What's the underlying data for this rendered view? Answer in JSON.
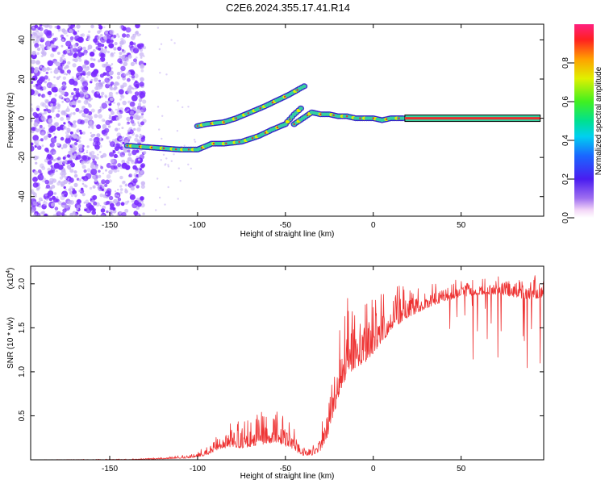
{
  "title": "C2E6.2024.355.17.41.R14",
  "colors": {
    "trace": "#ee3333",
    "dot": "#7b2cff",
    "haze": "#c9b5f5",
    "band": "#35d0a0",
    "core": "#e83030"
  },
  "chart_data": [
    {
      "type": "heatmap",
      "xlabel": "Height of straight line (km)",
      "ylabel": "Frequency (Hz)",
      "xlim": [
        -195,
        97
      ],
      "ylim": [
        -50,
        48
      ],
      "xticks": [
        -150,
        -100,
        -50,
        0,
        50
      ],
      "yticks": [
        -40,
        -20,
        0,
        20,
        40
      ],
      "xtick_labels": [
        "-150",
        "-100",
        "-50",
        "0",
        "50"
      ],
      "ytick_labels": [
        "-40",
        "-20",
        "0",
        "20",
        "40"
      ],
      "noise_region_x": [
        -195,
        -130
      ],
      "colorbar": {
        "label": "Normalized spectral amplitude",
        "range": [
          0,
          1
        ],
        "ticks": [
          0.0,
          0.2,
          0.4,
          0.6,
          0.8
        ],
        "tick_labels": [
          "0.0",
          "0.2",
          "0.4",
          "0.6",
          "0.8"
        ]
      },
      "bands": [
        {
          "points": [
            [
              -140,
              -14
            ],
            [
              -125,
              -15
            ],
            [
              -110,
              -16
            ],
            [
              -100,
              -16
            ],
            [
              -92,
              -13
            ],
            [
              -85,
              -13
            ],
            [
              -75,
              -12
            ],
            [
              -65,
              -9
            ],
            [
              -58,
              -6
            ],
            [
              -50,
              -3
            ],
            [
              -45,
              2
            ],
            [
              -40,
              6
            ]
          ],
          "amplitude": 0.55
        },
        {
          "points": [
            [
              -100,
              -4
            ],
            [
              -95,
              -3
            ],
            [
              -85,
              -2
            ],
            [
              -78,
              0
            ],
            [
              -70,
              3
            ],
            [
              -62,
              6
            ],
            [
              -55,
              9
            ],
            [
              -48,
              12
            ],
            [
              -42,
              15
            ],
            [
              -38,
              17
            ]
          ],
          "amplitude": 0.5
        },
        {
          "points": [
            [
              -45,
              -3
            ],
            [
              -40,
              0
            ],
            [
              -35,
              3
            ],
            [
              -30,
              2
            ],
            [
              -25,
              2
            ],
            [
              -20,
              1
            ],
            [
              -15,
              1
            ],
            [
              -10,
              0
            ],
            [
              -5,
              0
            ],
            [
              0,
              0
            ],
            [
              5,
              -1
            ],
            [
              10,
              0
            ],
            [
              18,
              0
            ]
          ],
          "amplitude": 0.7
        },
        {
          "points": [
            [
              18,
              0
            ],
            [
              95,
              0
            ]
          ],
          "amplitude": 1.0
        }
      ]
    },
    {
      "type": "line",
      "xlabel": "Height of straight line (km)",
      "ylabel": "SNR (10 * v/v)",
      "scale_label_base": "(x10",
      "scale_label_exp": "4",
      "scale_label_end": ")",
      "xlim": [
        -195,
        97
      ],
      "ylim": [
        0,
        2.2
      ],
      "xticks": [
        -150,
        -100,
        -50,
        0,
        50
      ],
      "yticks": [
        0.5,
        1.0,
        1.5,
        2.0
      ],
      "xtick_labels": [
        "-150",
        "-100",
        "-50",
        "0",
        "50"
      ],
      "ytick_labels": [
        "0.5",
        "1.0",
        "1.5",
        "2.0"
      ],
      "envelope": {
        "x": [
          -195,
          -140,
          -120,
          -105,
          -95,
          -88,
          -80,
          -75,
          -65,
          -55,
          -48,
          -45,
          -40,
          -35,
          -30,
          -25,
          -20,
          -15,
          -10,
          -5,
          0,
          5,
          10,
          15,
          20,
          30,
          40,
          50,
          60,
          70,
          80,
          90,
          97
        ],
        "base": [
          0.0,
          0.0,
          0.01,
          0.02,
          0.05,
          0.12,
          0.15,
          0.13,
          0.17,
          0.2,
          0.13,
          0.1,
          0.05,
          0.05,
          0.1,
          0.3,
          0.7,
          0.95,
          1.05,
          1.1,
          1.2,
          1.35,
          1.45,
          1.55,
          1.62,
          1.72,
          1.8,
          1.85,
          1.88,
          1.88,
          1.85,
          1.82,
          1.85
        ],
        "amp": [
          0.0,
          0.01,
          0.02,
          0.04,
          0.1,
          0.2,
          0.3,
          0.3,
          0.4,
          0.45,
          0.3,
          0.25,
          0.1,
          0.08,
          0.25,
          0.6,
          0.7,
          0.9,
          0.9,
          0.8,
          0.75,
          0.6,
          0.55,
          0.5,
          0.4,
          0.3,
          0.25,
          0.2,
          0.18,
          0.2,
          0.25,
          0.3,
          0.25
        ]
      }
    }
  ]
}
